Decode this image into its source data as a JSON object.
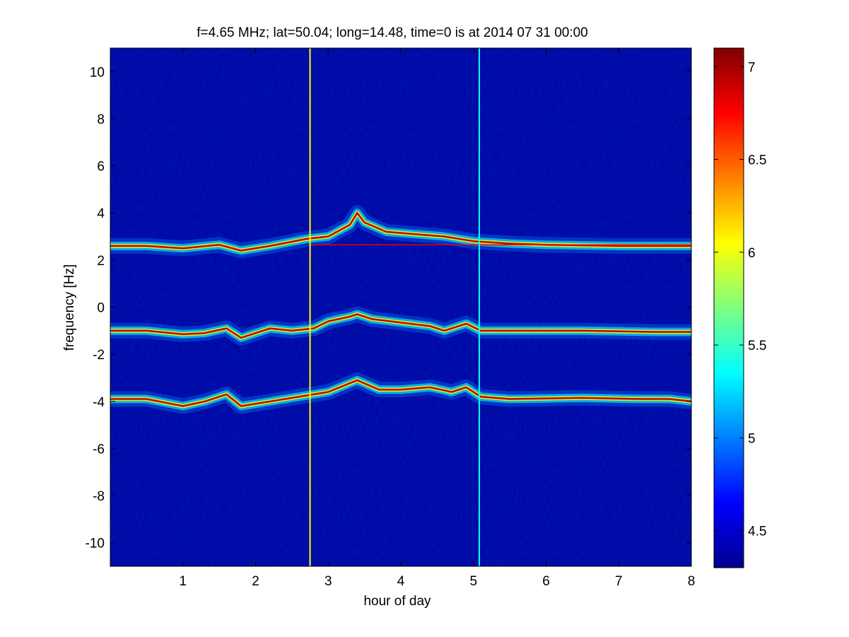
{
  "chart_data": {
    "type": "heatmap",
    "title": "f=4.65 MHz;  lat=50.04; long=14.48, time=0 is at 2014 07 31 00:00",
    "xlabel": "hour of day",
    "ylabel": "frequency [Hz]",
    "xlim": [
      0,
      8
    ],
    "ylim": [
      -11,
      11
    ],
    "xticks": [
      1,
      2,
      3,
      4,
      5,
      6,
      7,
      8
    ],
    "yticks": [
      -10,
      -8,
      -6,
      -4,
      -2,
      0,
      2,
      4,
      6,
      8,
      10
    ],
    "colorbar": {
      "range": [
        4.3,
        7.1
      ],
      "ticks": [
        4.5,
        5,
        5.5,
        6,
        6.5,
        7
      ],
      "colormap": "jet"
    },
    "background_level": 4.35,
    "grid": false,
    "traces": [
      {
        "level": 6.9,
        "points": [
          [
            0.0,
            2.6
          ],
          [
            0.5,
            2.6
          ],
          [
            1.0,
            2.5
          ],
          [
            1.5,
            2.65
          ],
          [
            1.8,
            2.4
          ],
          [
            2.2,
            2.6
          ],
          [
            2.7,
            2.9
          ],
          [
            3.0,
            3.0
          ],
          [
            3.3,
            3.5
          ],
          [
            3.4,
            4.0
          ],
          [
            3.5,
            3.6
          ],
          [
            3.8,
            3.2
          ],
          [
            4.2,
            3.1
          ],
          [
            4.6,
            3.0
          ],
          [
            5.0,
            2.8
          ],
          [
            5.5,
            2.7
          ],
          [
            6.0,
            2.65
          ],
          [
            7.0,
            2.6
          ],
          [
            8.0,
            2.6
          ]
        ]
      },
      {
        "level": 6.9,
        "points": [
          [
            0.0,
            -1.0
          ],
          [
            0.5,
            -1.0
          ],
          [
            1.0,
            -1.15
          ],
          [
            1.3,
            -1.1
          ],
          [
            1.6,
            -0.9
          ],
          [
            1.8,
            -1.3
          ],
          [
            2.2,
            -0.9
          ],
          [
            2.5,
            -1.0
          ],
          [
            2.8,
            -0.9
          ],
          [
            3.0,
            -0.6
          ],
          [
            3.3,
            -0.4
          ],
          [
            3.4,
            -0.3
          ],
          [
            3.6,
            -0.5
          ],
          [
            4.0,
            -0.65
          ],
          [
            4.4,
            -0.8
          ],
          [
            4.6,
            -1.0
          ],
          [
            4.9,
            -0.7
          ],
          [
            5.1,
            -1.0
          ],
          [
            5.5,
            -1.0
          ],
          [
            6.5,
            -1.0
          ],
          [
            7.5,
            -1.05
          ],
          [
            8.0,
            -1.05
          ]
        ]
      },
      {
        "level": 6.9,
        "points": [
          [
            0.0,
            -3.9
          ],
          [
            0.5,
            -3.9
          ],
          [
            1.0,
            -4.2
          ],
          [
            1.3,
            -4.0
          ],
          [
            1.6,
            -3.7
          ],
          [
            1.8,
            -4.2
          ],
          [
            2.2,
            -4.0
          ],
          [
            2.6,
            -3.8
          ],
          [
            3.0,
            -3.6
          ],
          [
            3.4,
            -3.1
          ],
          [
            3.7,
            -3.5
          ],
          [
            4.0,
            -3.5
          ],
          [
            4.4,
            -3.4
          ],
          [
            4.7,
            -3.6
          ],
          [
            4.9,
            -3.4
          ],
          [
            5.1,
            -3.8
          ],
          [
            5.5,
            -3.9
          ],
          [
            6.5,
            -3.85
          ],
          [
            7.3,
            -3.9
          ],
          [
            7.7,
            -3.9
          ],
          [
            8.0,
            -4.0
          ]
        ]
      }
    ],
    "horizontal_lines": [
      {
        "y": 2.65,
        "x_start": 2.75,
        "x_end": 8.0,
        "level": 6.8
      }
    ],
    "vertical_lines": [
      {
        "x": 2.75,
        "level": 6.05
      },
      {
        "x": 5.08,
        "level": 5.35
      }
    ]
  }
}
